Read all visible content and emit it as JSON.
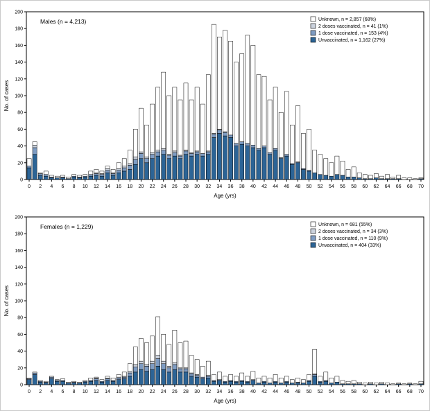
{
  "figure": {
    "background": "#ffffff",
    "border_color": "#c9c9c9"
  },
  "chart_data": [
    {
      "type": "bar",
      "stacked": true,
      "title": "Males  (n = 4,213)",
      "xlabel": "Age (yrs)",
      "ylabel": "No. of cases",
      "ylim": [
        0,
        200
      ],
      "ytick_step": 20,
      "ages_start": 0,
      "ages_end": 70,
      "xtick_step": 2,
      "legend_position": "top-right",
      "grid": false,
      "series": [
        {
          "name": "Unvaccinated",
          "legend_label": "Unvaccinated, n = 1,162 (27%)",
          "color": "#2c6496",
          "values": [
            14,
            30,
            5,
            4,
            2,
            2,
            2,
            1,
            3,
            2,
            3,
            4,
            5,
            4,
            8,
            5,
            8,
            10,
            12,
            18,
            25,
            20,
            25,
            28,
            30,
            25,
            28,
            25,
            30,
            28,
            30,
            28,
            30,
            50,
            55,
            52,
            50,
            40,
            42,
            40,
            38,
            35,
            38,
            30,
            35,
            25,
            28,
            18,
            20,
            12,
            10,
            8,
            6,
            5,
            4,
            6,
            5,
            3,
            3,
            2,
            1,
            1,
            2,
            1,
            1,
            1,
            1,
            0,
            0,
            0,
            1
          ]
        },
        {
          "name": "1 dose vaccinated",
          "legend_label": "1 dose vaccinated, n = 153 (4%)",
          "color": "#7e9cc3",
          "values": [
            2,
            8,
            2,
            2,
            1,
            0,
            1,
            0,
            1,
            1,
            1,
            2,
            2,
            2,
            3,
            2,
            3,
            4,
            5,
            6,
            6,
            5,
            5,
            5,
            5,
            4,
            4,
            3,
            4,
            3,
            3,
            3,
            3,
            4,
            4,
            4,
            3,
            3,
            3,
            3,
            3,
            2,
            2,
            2,
            2,
            1,
            2,
            1,
            1,
            1,
            1,
            0,
            0,
            0,
            0,
            0,
            0,
            0,
            0,
            0,
            0,
            0,
            0,
            0,
            0,
            0,
            0,
            0,
            0,
            0,
            0
          ]
        },
        {
          "name": "2 doses vaccinated",
          "legend_label": "2 doses vaccinated, n = 41 (1%)",
          "color": "#ccd3de",
          "values": [
            0,
            3,
            0,
            0,
            0,
            0,
            0,
            0,
            0,
            0,
            0,
            0,
            1,
            1,
            2,
            1,
            2,
            2,
            2,
            3,
            2,
            2,
            2,
            2,
            2,
            1,
            2,
            1,
            1,
            1,
            1,
            0,
            1,
            1,
            1,
            1,
            0,
            0,
            0,
            0,
            0,
            0,
            0,
            0,
            0,
            0,
            0,
            0,
            0,
            0,
            0,
            0,
            0,
            0,
            0,
            0,
            0,
            0,
            0,
            0,
            0,
            0,
            0,
            0,
            0,
            0,
            0,
            0,
            0,
            0,
            0
          ]
        },
        {
          "name": "Unknown",
          "legend_label": "Unknown, n = 2,857 (68%)",
          "color": "#ffffff",
          "values": [
            9,
            4,
            1,
            4,
            2,
            2,
            2,
            2,
            2,
            2,
            2,
            4,
            4,
            3,
            3,
            4,
            7,
            9,
            16,
            33,
            52,
            38,
            58,
            75,
            91,
            70,
            76,
            66,
            80,
            63,
            76,
            59,
            91,
            130,
            110,
            121,
            112,
            97,
            105,
            129,
            119,
            88,
            83,
            63,
            73,
            54,
            75,
            46,
            67,
            42,
            49,
            27,
            24,
            20,
            16,
            22,
            17,
            9,
            12,
            6,
            5,
            4,
            5,
            3,
            5,
            2,
            4,
            2,
            2,
            1,
            1
          ]
        }
      ]
    },
    {
      "type": "bar",
      "stacked": true,
      "title": "Females  (n = 1,229)",
      "xlabel": "Age (yrs)",
      "ylabel": "No. of cases",
      "ylim": [
        0,
        200
      ],
      "ytick_step": 20,
      "ages_start": 0,
      "ages_end": 70,
      "xtick_step": 2,
      "legend_position": "top-right",
      "grid": false,
      "series": [
        {
          "name": "Unvaccinated",
          "legend_label": "Unvaccinated, n = 404 (33%)",
          "color": "#2c6496",
          "values": [
            6,
            12,
            3,
            2,
            7,
            4,
            4,
            2,
            2,
            2,
            3,
            4,
            5,
            3,
            5,
            4,
            6,
            7,
            10,
            15,
            18,
            16,
            18,
            22,
            18,
            15,
            18,
            15,
            15,
            10,
            9,
            7,
            8,
            4,
            5,
            3,
            4,
            3,
            4,
            3,
            5,
            2,
            3,
            2,
            3,
            2,
            3,
            2,
            2,
            2,
            4,
            10,
            3,
            4,
            2,
            3,
            1,
            1,
            1,
            1,
            0,
            1,
            0,
            1,
            0,
            0,
            1,
            0,
            1,
            0,
            1
          ]
        },
        {
          "name": "1 dose vaccinated",
          "legend_label": "1 dose vaccinated, n = 110 (9%)",
          "color": "#7e9cc3",
          "values": [
            1,
            2,
            1,
            1,
            2,
            1,
            1,
            0,
            1,
            0,
            1,
            1,
            2,
            1,
            2,
            1,
            2,
            2,
            4,
            6,
            7,
            6,
            7,
            9,
            7,
            5,
            6,
            4,
            4,
            3,
            2,
            2,
            2,
            1,
            1,
            1,
            1,
            1,
            1,
            1,
            1,
            0,
            1,
            0,
            1,
            0,
            1,
            0,
            1,
            0,
            1,
            2,
            1,
            1,
            0,
            0,
            0,
            0,
            0,
            0,
            0,
            0,
            0,
            0,
            0,
            0,
            0,
            0,
            0,
            0,
            0
          ]
        },
        {
          "name": "2 doses vaccinated",
          "legend_label": "2 doses vaccinated, n = 34 (3%)",
          "color": "#ccd3de",
          "values": [
            0,
            0,
            0,
            0,
            0,
            0,
            0,
            0,
            0,
            0,
            0,
            0,
            1,
            0,
            1,
            0,
            1,
            1,
            2,
            3,
            3,
            2,
            3,
            4,
            3,
            2,
            2,
            1,
            1,
            1,
            1,
            0,
            1,
            0,
            0,
            0,
            0,
            0,
            0,
            0,
            0,
            0,
            0,
            0,
            0,
            0,
            0,
            0,
            0,
            0,
            0,
            1,
            0,
            0,
            0,
            0,
            0,
            0,
            0,
            0,
            0,
            0,
            0,
            0,
            0,
            0,
            0,
            0,
            0,
            0,
            0
          ]
        },
        {
          "name": "Unknown",
          "legend_label": "Unknown, n = 681 (55%)",
          "color": "#ffffff",
          "values": [
            1,
            1,
            1,
            1,
            1,
            1,
            2,
            1,
            1,
            1,
            1,
            3,
            1,
            2,
            2,
            3,
            3,
            5,
            9,
            21,
            27,
            26,
            30,
            46,
            32,
            26,
            39,
            30,
            32,
            21,
            18,
            13,
            17,
            7,
            9,
            6,
            7,
            6,
            9,
            6,
            10,
            6,
            6,
            6,
            8,
            6,
            6,
            4,
            5,
            4,
            7,
            29,
            6,
            10,
            6,
            7,
            4,
            3,
            4,
            2,
            2,
            2,
            2,
            2,
            2,
            1,
            1,
            1,
            1,
            1,
            3
          ]
        }
      ]
    }
  ]
}
